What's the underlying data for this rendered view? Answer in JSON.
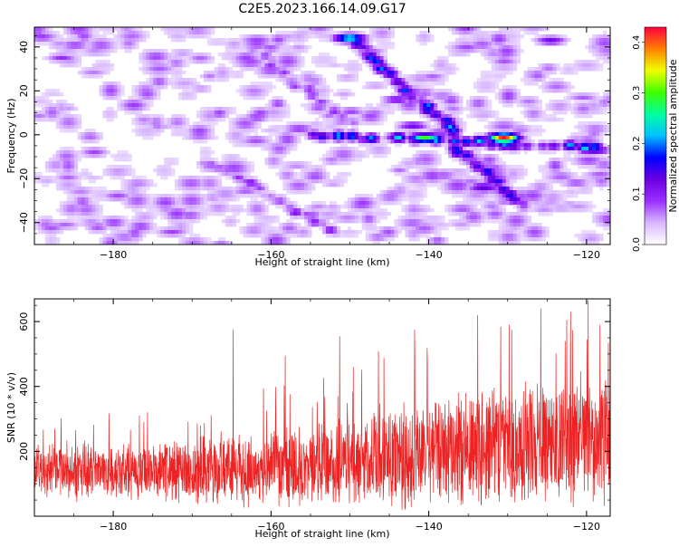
{
  "title": "C2E5.2023.166.14.09.G17",
  "colors": {
    "snr_line": "#ee2222",
    "frame": "#000000"
  },
  "chart_data": [
    {
      "type": "heatmap",
      "name": "spectrogram",
      "xlabel": "Height of straight line (km)",
      "ylabel": "Frequency (Hz)",
      "xlim": [
        -190,
        -117
      ],
      "ylim": [
        -50,
        49
      ],
      "x_ticks": [
        -180,
        -160,
        -140,
        -120
      ],
      "y_ticks": [
        40,
        20,
        0,
        -20,
        -40
      ],
      "colorbar": {
        "label": "Normalized spectral amplitude",
        "range": [
          0,
          0.43
        ],
        "ticks": [
          0.0,
          0.1,
          0.2,
          0.3,
          0.4
        ],
        "colormap": [
          "#ffffff",
          "#d9b8ff",
          "#9a30ff",
          "#6a00e0",
          "#0000ff",
          "#00c0ff",
          "#00ffa0",
          "#40ff00",
          "#f0ff00",
          "#ff8000",
          "#ff0040"
        ]
      },
      "features": [
        {
          "x": [
            -150,
            -137
          ],
          "y": [
            44,
            2
          ],
          "amplitude": 0.18
        },
        {
          "x": [
            -137,
            -128
          ],
          "y": [
            -5,
            -32
          ],
          "amplitude": 0.15
        },
        {
          "x": [
            -155,
            -119
          ],
          "y": [
            0,
            -6
          ],
          "amplitude": 0.2
        },
        {
          "x": [
            -168,
            -152
          ],
          "y": [
            -12,
            -44
          ],
          "amplitude": 0.1
        },
        {
          "x": [
            -162,
            -150
          ],
          "y": [
            38,
            5
          ],
          "amplitude": 0.08
        }
      ],
      "peaks": [
        {
          "x": -130.5,
          "y": -1.5,
          "amplitude": 0.43
        },
        {
          "x": -140.5,
          "y": -1.5,
          "amplitude": 0.3
        },
        {
          "x": -150.0,
          "y": 44.0,
          "amplitude": 0.25
        },
        {
          "x": -133.0,
          "y": -24.0,
          "amplitude": 0.14
        },
        {
          "x": -119.0,
          "y": -7.0,
          "amplitude": 0.15
        },
        {
          "x": -124.5,
          "y": 43.0,
          "amplitude": 0.12
        },
        {
          "x": -142.0,
          "y": 4.0,
          "amplitude": 0.12
        },
        {
          "x": -144.0,
          "y": 16.0,
          "amplitude": 0.11
        },
        {
          "x": -186.5,
          "y": 35.0,
          "amplitude": 0.09
        }
      ]
    },
    {
      "type": "line",
      "name": "snr",
      "xlabel": "Height of straight line (km)",
      "ylabel": "SNR (10 * v/v)",
      "xlim": [
        -190,
        -117
      ],
      "ylim": [
        0,
        670
      ],
      "x_ticks": [
        -180,
        -160,
        -140,
        -120
      ],
      "y_ticks": [
        200,
        400,
        600
      ],
      "envelope": {
        "x": [
          -190,
          -185,
          -180,
          -175,
          -170,
          -165,
          -160,
          -155,
          -150,
          -145,
          -140,
          -135,
          -130,
          -125,
          -120,
          -117
        ],
        "baseline": [
          140,
          140,
          135,
          135,
          140,
          150,
          150,
          160,
          170,
          185,
          195,
          205,
          215,
          225,
          230,
          230
        ],
        "spread": [
          90,
          100,
          95,
          95,
          110,
          130,
          130,
          140,
          150,
          175,
          185,
          200,
          200,
          210,
          220,
          215
        ]
      },
      "peaks": [
        {
          "x": -164.8,
          "y": 575
        },
        {
          "x": -158.2,
          "y": 495
        },
        {
          "x": -151.3,
          "y": 555
        },
        {
          "x": -141.8,
          "y": 575
        },
        {
          "x": -133.8,
          "y": 620
        },
        {
          "x": -129.8,
          "y": 590
        },
        {
          "x": -125.8,
          "y": 640
        },
        {
          "x": -122.5,
          "y": 605
        },
        {
          "x": -119.8,
          "y": 665
        },
        {
          "x": -118.3,
          "y": 590
        }
      ]
    }
  ]
}
